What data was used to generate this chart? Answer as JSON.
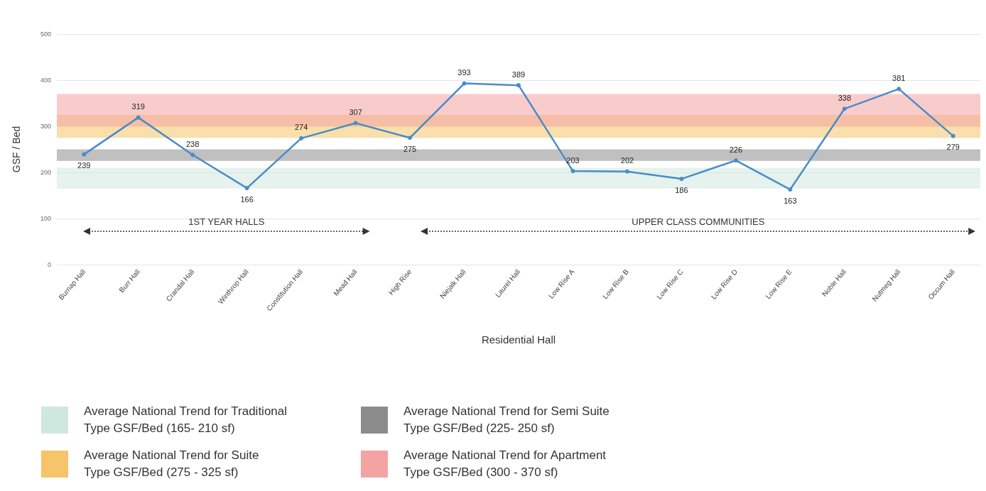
{
  "chart_data": {
    "type": "line",
    "xlabel": "Residential Hall",
    "ylabel": "GSF / Bed",
    "categories": [
      "Burnap Hall",
      "Burr Hall",
      "Crandal Hall",
      "Winthrop Hall",
      "Constitution Hall",
      "Mead Hall",
      "High Rise",
      "Niejalk Hall",
      "Laurel Hall",
      "Low Rise A",
      "Low Rise B",
      "Low Rise C",
      "Low Rise D",
      "Low Rise E",
      "Noble Hall",
      "Nutmeg Hall",
      "Occum Hall"
    ],
    "series": [
      {
        "color": "#4a8cc8",
        "values": [
          239,
          319,
          238,
          166,
          274,
          307,
          275,
          393,
          389,
          203,
          202,
          186,
          226,
          163,
          338,
          381,
          279
        ]
      }
    ],
    "ylim": [
      0,
      500
    ],
    "yticks": [
      0,
      100,
      200,
      300,
      400,
      500
    ],
    "grid": "y",
    "marker": "circle",
    "line_style": "solid",
    "data_labels": true,
    "legend": "bottom",
    "bands": [
      {
        "axis": "y",
        "from": 165,
        "to": 210,
        "color": "#cfe8df",
        "label": "Average National Trend for Traditional\nType GSF/Bed (165- 210 sf)"
      },
      {
        "axis": "y",
        "from": 225,
        "to": 250,
        "color": "#8c8c8c",
        "label": "Average National Trend for Semi Suite\nType GSF/Bed (225- 250 sf)"
      },
      {
        "axis": "y",
        "from": 275,
        "to": 325,
        "color": "#f6c46a",
        "label": "Average National Trend for Suite\nType GSF/Bed (275 - 325 sf)"
      },
      {
        "axis": "y",
        "from": 300,
        "to": 370,
        "color": "#f4a3a3",
        "label": "Average National Trend for Apartment\nType GSF/Bed (300 - 370 sf)"
      }
    ],
    "annotations": [
      "1ST YEAR HALLS",
      "UPPER CLASS COMMUNITIES"
    ]
  }
}
